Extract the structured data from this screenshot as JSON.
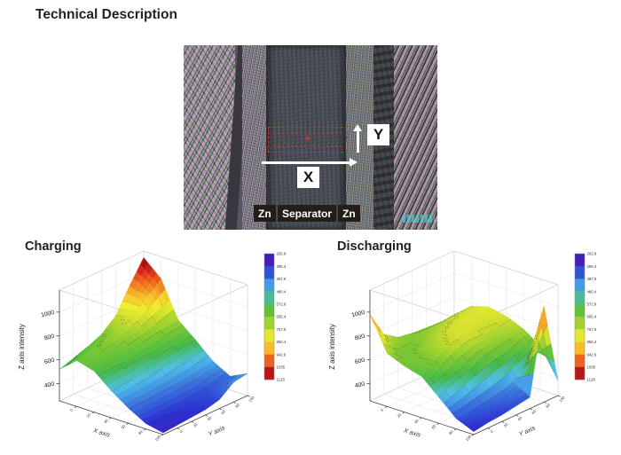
{
  "title": "Technical Description",
  "micrograph": {
    "x_label": "X",
    "y_label": "Y",
    "roi_marker": "+",
    "region_labels": {
      "left": "Zn",
      "middle": "Separator",
      "right": "Zn"
    }
  },
  "sections": {
    "charging_label": "Charging",
    "discharging_label": "Discharging"
  },
  "chart_data": [
    {
      "type": "surface",
      "title": "Charging",
      "xlabel": "X axis",
      "ylabel": "Y axis",
      "zlabel": "Z axis intensity",
      "z_ticks": [
        400,
        600,
        800,
        1000
      ],
      "x_tick_labels": [
        "0",
        "20",
        "40",
        "60",
        "80",
        "100"
      ],
      "y_tick_labels": [
        "0",
        "20",
        "40",
        "60",
        "80",
        "100"
      ],
      "z_range": [
        255,
        1185
      ],
      "color_scale_range": [
        203,
        1128
      ],
      "colorbar_labels": [
        "202.9",
        "295.4",
        "387.9",
        "480.4",
        "572.9",
        "665.4",
        "757.9",
        "850.4",
        "942.9",
        "1035",
        "1128"
      ],
      "grid": [
        [
          520,
          640,
          600,
          480,
          380,
          300,
          270
        ],
        [
          560,
          660,
          615,
          490,
          385,
          295,
          280
        ],
        [
          600,
          680,
          625,
          500,
          390,
          300,
          290
        ],
        [
          650,
          720,
          645,
          520,
          400,
          310,
          300
        ],
        [
          750,
          800,
          665,
          540,
          410,
          320,
          330
        ],
        [
          950,
          900,
          685,
          560,
          430,
          340,
          420
        ],
        [
          1130,
          1000,
          700,
          580,
          450,
          370,
          440
        ]
      ]
    },
    {
      "type": "surface",
      "title": "Discharging",
      "xlabel": "X axis",
      "ylabel": "Y axis",
      "zlabel": "Z axis intensity",
      "z_ticks": [
        400,
        600,
        800,
        1000
      ],
      "x_tick_labels": [
        "0",
        "20",
        "40",
        "60",
        "80",
        "100"
      ],
      "y_tick_labels": [
        "0",
        "20",
        "40",
        "60",
        "80",
        "100"
      ],
      "z_range": [
        255,
        1185
      ],
      "color_scale_range": [
        203,
        1128
      ],
      "colorbar_labels": [
        "202.9",
        "295.4",
        "387.9",
        "480.4",
        "572.9",
        "665.4",
        "757.9",
        "850.4",
        "942.9",
        "1035",
        "1128"
      ],
      "grid": [
        [
          980,
          700,
          640,
          600,
          470,
          340,
          280
        ],
        [
          760,
          640,
          660,
          680,
          520,
          350,
          300
        ],
        [
          680,
          660,
          720,
          760,
          580,
          370,
          310
        ],
        [
          660,
          700,
          770,
          790,
          640,
          390,
          330
        ],
        [
          650,
          730,
          800,
          770,
          670,
          430,
          350
        ],
        [
          640,
          760,
          800,
          760,
          690,
          520,
          1060
        ],
        [
          650,
          770,
          810,
          780,
          720,
          620,
          380
        ]
      ]
    }
  ],
  "colors": {
    "accent_red": "#d5342b",
    "surface_contour": "rgba(110,10,25,0.5)",
    "colormap": [
      [
        0.0,
        "#5a0f9e"
      ],
      [
        0.1,
        "#2b2fd0"
      ],
      [
        0.2,
        "#3a77dd"
      ],
      [
        0.3,
        "#4fc0e8"
      ],
      [
        0.4,
        "#44b947"
      ],
      [
        0.5,
        "#7dc832"
      ],
      [
        0.6,
        "#c6dc2e"
      ],
      [
        0.68,
        "#f2ee30"
      ],
      [
        0.76,
        "#f6b52a"
      ],
      [
        0.84,
        "#ef6c1e"
      ],
      [
        0.92,
        "#d8201c"
      ],
      [
        1.0,
        "#7a0b0b"
      ]
    ]
  }
}
